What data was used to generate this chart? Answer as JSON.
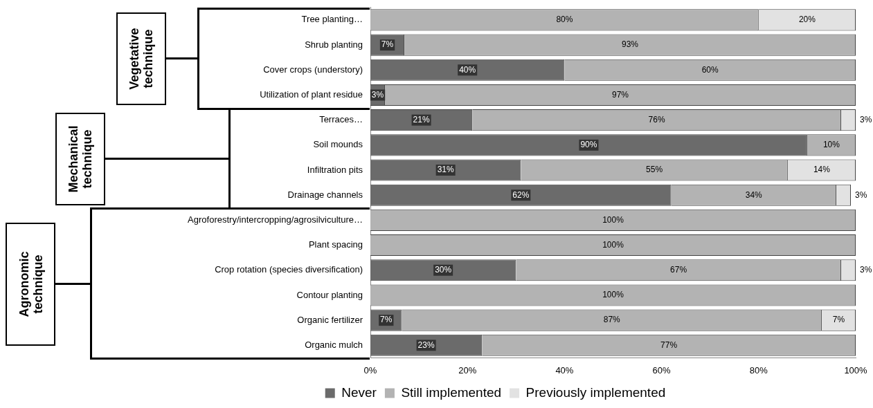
{
  "chart_data": {
    "type": "bar",
    "orientation": "horizontal",
    "stacked": true,
    "categories": [
      "Tree planting…",
      "Shrub planting",
      "Cover crops (understory)",
      "Utilization of plant residue",
      "Terraces…",
      "Soil mounds",
      "Infiltration pits",
      "Drainage channels",
      "Agroforestry/intercropping/agrosilviculture…",
      "Plant spacing",
      "Crop rotation (species diversification)",
      "Contour planting",
      "Organic fertilizer",
      "Organic mulch"
    ],
    "series": [
      {
        "name": "Never",
        "color": "#6b6b6b",
        "values": [
          0,
          7,
          40,
          3,
          21,
          90,
          31,
          62,
          0,
          0,
          30,
          0,
          6.5,
          23
        ],
        "value_labels": [
          null,
          "7%",
          "40%",
          "3%",
          "21%",
          "90%",
          "31%",
          "62%",
          null,
          null,
          "30%",
          null,
          "7%",
          "23%"
        ]
      },
      {
        "name": "Still implemented",
        "color": "#b3b3b3",
        "values": [
          80,
          93,
          60,
          97,
          76,
          10,
          55,
          34,
          100,
          100,
          67,
          100,
          86.5,
          77
        ],
        "value_labels": [
          "80%",
          "93%",
          "60%",
          "97%",
          "76%",
          "10%",
          "55%",
          "34%",
          "100%",
          "100%",
          "67%",
          "100%",
          "87%",
          "77%"
        ]
      },
      {
        "name": "Previously implemented",
        "color": "#e2e2e2",
        "values": [
          20,
          0,
          0,
          0,
          3,
          0,
          14,
          3,
          0,
          0,
          3,
          0,
          7,
          0
        ],
        "value_labels": [
          "20%",
          null,
          null,
          null,
          "3%",
          null,
          "14%",
          "3%",
          null,
          null,
          "3%",
          null,
          "7%",
          null
        ]
      }
    ],
    "xlim": [
      0,
      100
    ],
    "xticks": [
      {
        "value": 0,
        "label": "0%"
      },
      {
        "value": 20,
        "label": "20%"
      },
      {
        "value": 40,
        "label": "40%"
      },
      {
        "value": 60,
        "label": "60%"
      },
      {
        "value": 80,
        "label": "80%"
      },
      {
        "value": 100,
        "label": "100%"
      }
    ],
    "annotations": [
      "Vegetative technique",
      "Mechanical technique",
      "Agronomic technique"
    ],
    "grid": false,
    "legend": "bottom"
  }
}
